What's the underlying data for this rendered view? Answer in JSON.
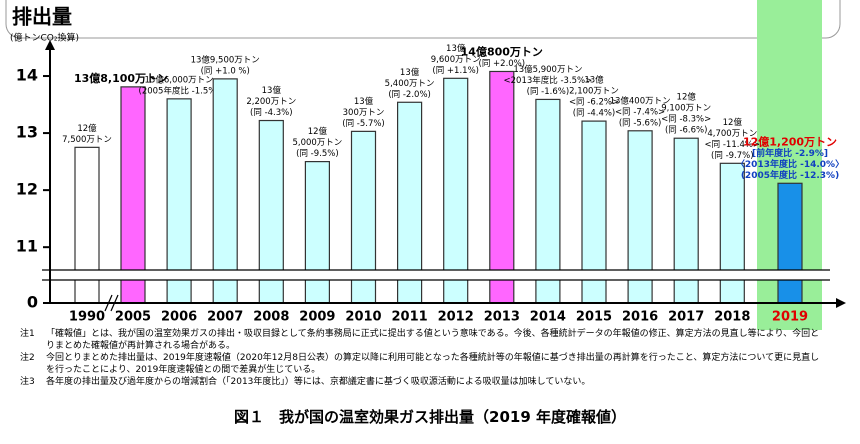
{
  "chart_data": {
    "type": "bar",
    "title": "排出量",
    "y_label": "(億トンCO₂換算)",
    "categories": [
      "1990",
      "2005",
      "2006",
      "2007",
      "2008",
      "2009",
      "2010",
      "2011",
      "2012",
      "2013",
      "2014",
      "2015",
      "2016",
      "2017",
      "2018",
      "2019"
    ],
    "values": [
      12.75,
      13.81,
      13.6,
      13.95,
      13.22,
      12.5,
      13.03,
      13.54,
      13.96,
      14.08,
      13.59,
      13.21,
      13.04,
      12.91,
      12.47,
      12.12
    ],
    "value_labels": [
      [
        "12億",
        "7,500万トン"
      ],
      [
        "13億8,100万トン"
      ],
      [
        "13億6,000万トン",
        "(2005年度比 -1.5%)"
      ],
      [
        "13億9,500万トン",
        "(同 +1.0 %)"
      ],
      [
        "13億",
        "2,200万トン",
        "(同 -4.3%)"
      ],
      [
        "12億",
        "5,000万トン",
        "(同 -9.5%)"
      ],
      [
        "13億",
        "300万トン",
        "(同 -5.7%)"
      ],
      [
        "13億",
        "5,400万トン",
        "(同 -2.0%)"
      ],
      [
        "13億",
        "9,600万トン",
        "(同 +1.1%)"
      ],
      [
        "14億800万トン",
        "(同 +2.0%)"
      ],
      [
        "13億5,900万トン",
        "<2013年度比 -3.5%>",
        "(同 -1.6%)"
      ],
      [
        "13億",
        "2,100万トン",
        "<同 -6.2%>",
        "(同 -4.4%)"
      ],
      [
        "13億400万トン",
        "<同 -7.4%>",
        "(同 -5.6%)"
      ],
      [
        "12億",
        "9,100万トン",
        "<同 -8.3%>",
        "(同 -6.6%)"
      ],
      [
        "12億",
        "4,700万トン",
        "<同 -11.4%>",
        "(同 -9.7%)"
      ],
      [
        "12億1,200万トン",
        "[前年度比 -2.9%]",
        "〈2013年度比 -14.0%〉",
        "(2005年度比 -12.3%)"
      ]
    ],
    "colors": [
      "#ffffff",
      "#ff66ff",
      "#ccffff",
      "#ccffff",
      "#ccffff",
      "#ccffff",
      "#ccffff",
      "#ccffff",
      "#ccffff",
      "#ff66ff",
      "#ccffff",
      "#ccffff",
      "#ccffff",
      "#ccffff",
      "#ccffff",
      "#1890e8"
    ],
    "highlight_color": "#99ee99",
    "ylim": [
      0,
      14.6
    ],
    "axis_break": [
      0.5,
      10.6
    ],
    "yticks": [
      0,
      11,
      12,
      13,
      14
    ]
  },
  "notes": [
    {
      "label": "注1",
      "text": "「確報値」とは、我が国の温室効果ガスの排出・吸収目録として条約事務局に正式に提出する値という意味である。今後、各種統計データの年報値の修正、算定方法の見直し等により、今回とりまとめた確報値が再計算される場合がある。"
    },
    {
      "label": "注2",
      "text": "今回とりまとめた排出量は、2019年度速報値（2020年12月8日公表）の算定以降に利用可能となった各種統計等の年報値に基づき排出量の再計算を行ったこと、算定方法について更に見直しを行ったことにより、2019年度速報値との間で差異が生じている。"
    },
    {
      "label": "注3",
      "text": "各年度の排出量及び過年度からの増減割合（「2013年度比」）等には、京都議定書に基づく吸収源活動による吸収量は加味していない。"
    }
  ],
  "caption": "図１　我が国の温室効果ガス排出量（2019 年度確報値）"
}
